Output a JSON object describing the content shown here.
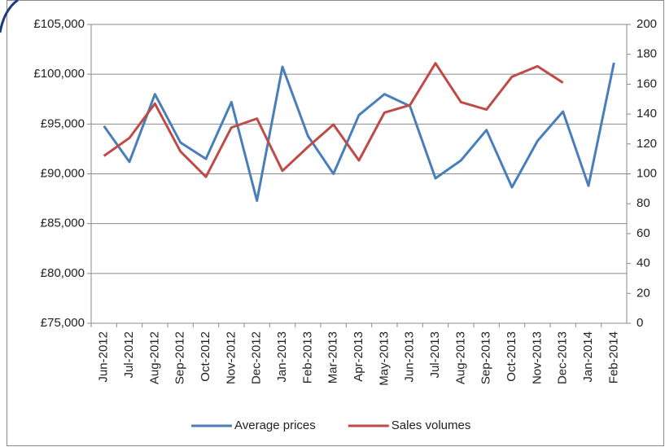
{
  "chart_data": {
    "type": "line",
    "categories": [
      "Jun-2012",
      "Jul-2012",
      "Aug-2012",
      "Sep-2012",
      "Oct-2012",
      "Nov-2012",
      "Dec-2012",
      "Jan-2013",
      "Feb-2013",
      "Mar-2013",
      "Apr-2013",
      "May-2013",
      "Jun-2013",
      "Jul-2013",
      "Aug-2013",
      "Sep-2013",
      "Oct-2013",
      "Nov-2013",
      "Dec-2013",
      "Jan-2014",
      "Feb-2014"
    ],
    "series": [
      {
        "name": "Average prices",
        "color": "#4a7ebb",
        "values": [
          94800,
          91200,
          98000,
          93150,
          91500,
          97200,
          87300,
          100750,
          93800,
          90000,
          95900,
          98000,
          96800,
          89550,
          91350,
          94400,
          88650,
          93300,
          96250,
          88800,
          101150
        ]
      },
      {
        "name": "Sales volumes",
        "color": "#be4b48",
        "axis": "y2",
        "values": [
          112,
          124,
          147,
          115,
          98,
          131,
          137,
          102,
          118,
          133,
          109,
          141,
          146,
          174,
          148,
          143,
          165,
          172,
          161,
          null,
          null
        ]
      }
    ],
    "ylim": [
      75000,
      105000
    ],
    "yticks": [
      {
        "value": 75000,
        "label": "£75,000"
      },
      {
        "value": 80000,
        "label": "£80,000"
      },
      {
        "value": 85000,
        "label": "£85,000"
      },
      {
        "value": 90000,
        "label": "£90,000"
      },
      {
        "value": 95000,
        "label": "£95,000"
      },
      {
        "value": 100000,
        "label": "£100,000"
      },
      {
        "value": 105000,
        "label": "£105,000"
      }
    ],
    "y2lim": [
      0,
      200
    ],
    "y2ticks": [
      0,
      20,
      40,
      60,
      80,
      100,
      120,
      140,
      160,
      180,
      200
    ],
    "grid": true,
    "legend": "bottom"
  }
}
